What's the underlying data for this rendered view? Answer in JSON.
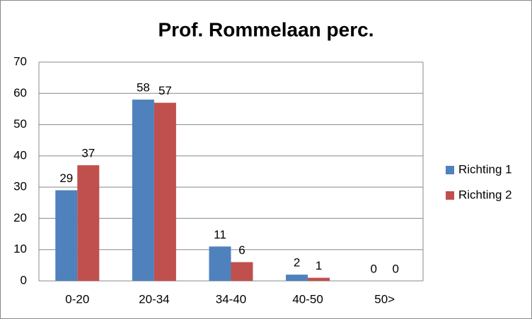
{
  "chart_data": {
    "type": "bar",
    "title": "Prof. Rommelaan perc.",
    "categories": [
      "0-20",
      "20-34",
      "34-40",
      "40-50",
      "50>"
    ],
    "series": [
      {
        "name": "Richting 1",
        "color": "#4f81bd",
        "values": [
          29,
          58,
          11,
          2,
          0
        ]
      },
      {
        "name": "Richting 2",
        "color": "#c0504d",
        "values": [
          37,
          57,
          6,
          1,
          0
        ]
      }
    ],
    "ylim": [
      0,
      70
    ],
    "yticks": [
      0,
      10,
      20,
      30,
      40,
      50,
      60,
      70
    ],
    "grid": true,
    "legend": "right"
  }
}
